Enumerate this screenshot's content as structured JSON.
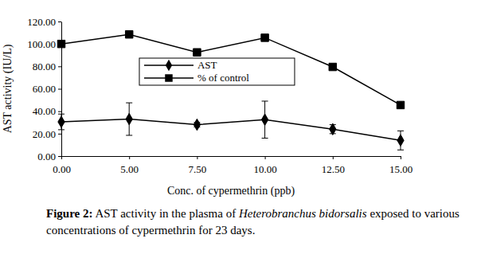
{
  "chart_data": {
    "type": "line",
    "categories": [
      "0.00",
      "5.00",
      "7.50",
      "10.00",
      "12.50",
      "15.00"
    ],
    "x_label": "Conc. of cypermethrin (ppb)",
    "y_label": "AST activity (IU/L)",
    "caption": [
      "Figure 2:",
      " AST activity in the plasma of ",
      "Heterobranchus bidorsalis",
      " exposed to various concentrations of cypermethrin for 23 days."
    ],
    "series": [
      {
        "name": "AST",
        "color": "#000000",
        "marker": "diamond",
        "values": [
          30.5,
          33,
          28,
          32.5,
          24,
          14
        ],
        "errors": [
          7,
          14.5,
          2,
          16.5,
          4,
          8.5
        ]
      },
      {
        "name": "% of control",
        "color": "#000000",
        "marker": "square",
        "values": [
          100,
          108.5,
          92.5,
          105.5,
          79.5,
          45.5
        ]
      }
    ],
    "ylim": [
      0,
      120
    ],
    "yticks": [
      {
        "value": 0,
        "label": "0.00"
      },
      {
        "value": 20,
        "label": "20.00"
      },
      {
        "value": 40,
        "label": "40.00"
      },
      {
        "value": 60,
        "label": "60.00"
      },
      {
        "value": 80,
        "label": "80.00"
      },
      {
        "value": 100,
        "label": "100.00"
      },
      {
        "value": 120,
        "label": "120.00"
      }
    ],
    "legend": "top"
  }
}
